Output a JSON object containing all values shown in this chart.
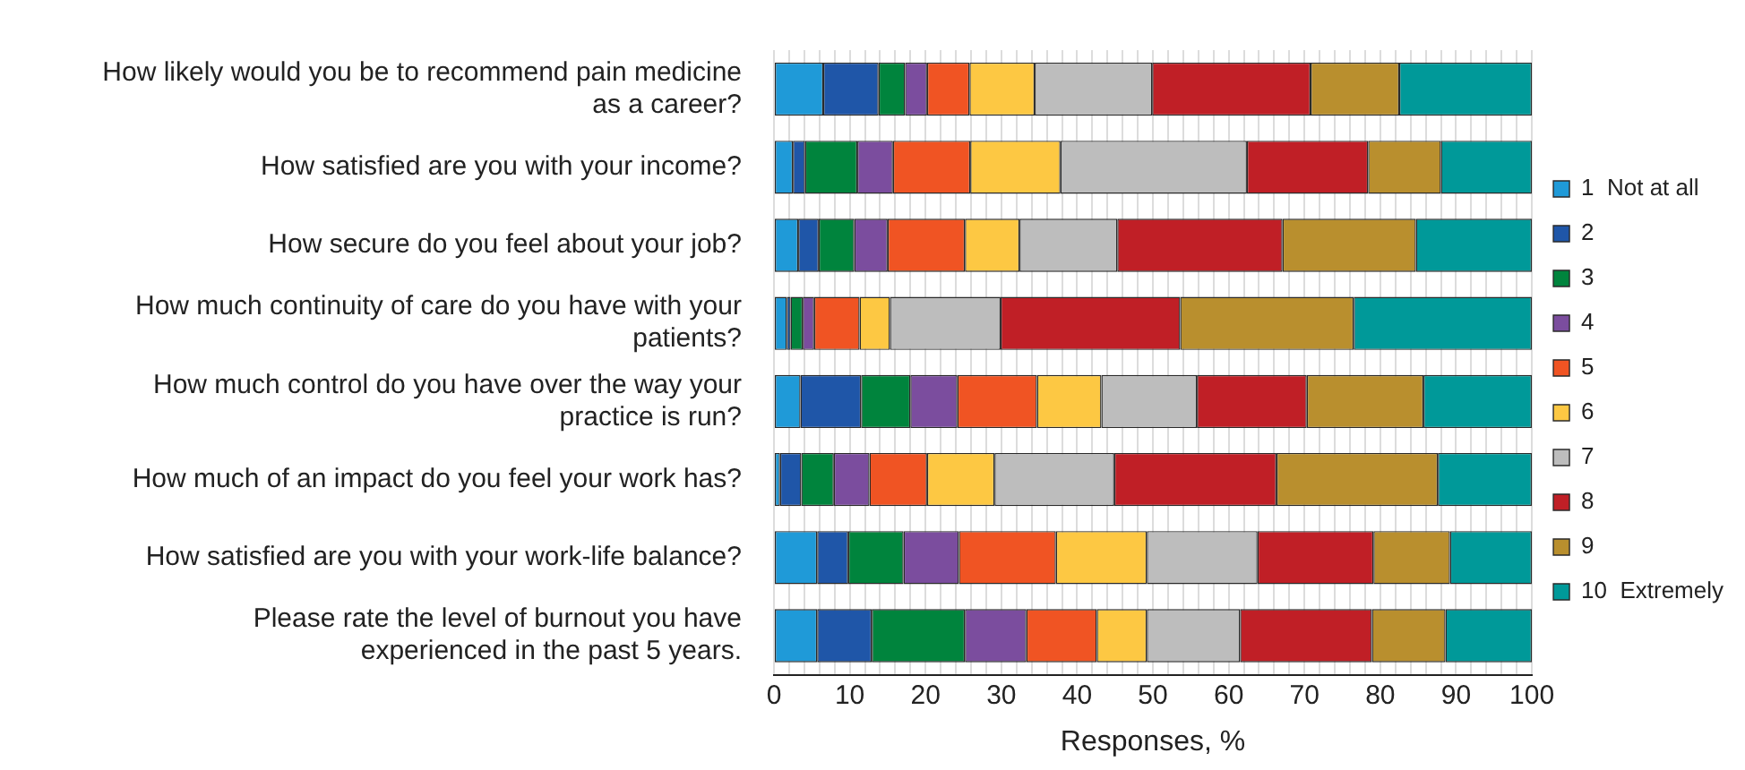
{
  "chart_data": {
    "type": "bar",
    "orientation": "horizontal",
    "stacked": true,
    "xlabel": "Responses, %",
    "categories": [
      "How likely would you be to recommend pain medicine as a career?",
      "How satisfied are you with your income?",
      "How secure do you feel about your job?",
      "How much continuity of care do you have with your patients?",
      "How much control do you have over the way your practice is run?",
      "How much of an impact do you feel your work has?",
      "How satisfied are you with your work-life balance?",
      "Please rate the level of burnout you have experienced in the past 5 years."
    ],
    "series": [
      {
        "name": "1  Not at all",
        "color": "#1f9ad8",
        "values": [
          6.5,
          2.5,
          3.2,
          1.7,
          3.5,
          0.8,
          5.7,
          5.7
        ]
      },
      {
        "name": "2",
        "color": "#1f56a8",
        "values": [
          7.3,
          1.6,
          2.7,
          0.5,
          8.0,
          2.8,
          4.1,
          7.2
        ]
      },
      {
        "name": "3",
        "color": "#00843d",
        "values": [
          3.5,
          6.9,
          4.7,
          1.6,
          6.5,
          4.3,
          7.3,
          12.3
        ]
      },
      {
        "name": "4",
        "color": "#7b4d9e",
        "values": [
          2.9,
          4.7,
          4.4,
          1.5,
          6.2,
          4.7,
          7.3,
          8.1
        ]
      },
      {
        "name": "5",
        "color": "#f05423",
        "values": [
          5.6,
          10.2,
          10.2,
          6.0,
          10.5,
          7.6,
          12.8,
          9.3
        ]
      },
      {
        "name": "6",
        "color": "#fdc843",
        "values": [
          8.6,
          11.9,
          7.2,
          4.0,
          8.5,
          8.9,
          12.0,
          6.6
        ]
      },
      {
        "name": "7",
        "color": "#bdbdbd",
        "values": [
          15.5,
          24.6,
          12.9,
          14.6,
          12.6,
          15.8,
          14.6,
          12.3
        ]
      },
      {
        "name": "8",
        "color": "#c01f26",
        "values": [
          20.9,
          16.0,
          21.8,
          23.7,
          14.5,
          21.4,
          15.3,
          17.4
        ]
      },
      {
        "name": "9",
        "color": "#b98f2e",
        "values": [
          11.7,
          9.6,
          17.6,
          22.9,
          15.4,
          21.3,
          10.1,
          9.7
        ]
      },
      {
        "name": "10  Extremely",
        "color": "#009999",
        "values": [
          17.5,
          12.0,
          15.3,
          23.5,
          14.3,
          12.4,
          10.8,
          11.4
        ]
      }
    ],
    "xlim": [
      0,
      100
    ],
    "xticks": [
      0,
      {
        "value": 2,
        "label": null
      },
      {
        "value": 4,
        "label": null
      },
      {
        "value": 6,
        "label": null
      },
      {
        "value": 8,
        "label": null
      },
      10,
      {
        "value": 12,
        "label": null
      },
      {
        "value": 14,
        "label": null
      },
      {
        "value": 16,
        "label": null
      },
      {
        "value": 18,
        "label": null
      },
      20,
      {
        "value": 22,
        "label": null
      },
      {
        "value": 24,
        "label": null
      },
      {
        "value": 26,
        "label": null
      },
      {
        "value": 28,
        "label": null
      },
      30,
      {
        "value": 32,
        "label": null
      },
      {
        "value": 34,
        "label": null
      },
      {
        "value": 36,
        "label": null
      },
      {
        "value": 38,
        "label": null
      },
      40,
      {
        "value": 42,
        "label": null
      },
      {
        "value": 44,
        "label": null
      },
      {
        "value": 46,
        "label": null
      },
      {
        "value": 48,
        "label": null
      },
      50,
      {
        "value": 52,
        "label": null
      },
      {
        "value": 54,
        "label": null
      },
      {
        "value": 56,
        "label": null
      },
      {
        "value": 58,
        "label": null
      },
      60,
      {
        "value": 62,
        "label": null
      },
      {
        "value": 64,
        "label": null
      },
      {
        "value": 66,
        "label": null
      },
      {
        "value": 68,
        "label": null
      },
      70,
      {
        "value": 72,
        "label": null
      },
      {
        "value": 74,
        "label": null
      },
      {
        "value": 76,
        "label": null
      },
      {
        "value": 78,
        "label": null
      },
      80,
      {
        "value": 82,
        "label": null
      },
      {
        "value": 84,
        "label": null
      },
      {
        "value": 86,
        "label": null
      },
      {
        "value": 88,
        "label": null
      },
      90,
      {
        "value": 92,
        "label": null
      },
      {
        "value": 94,
        "label": null
      },
      {
        "value": 96,
        "label": null
      },
      {
        "value": 98,
        "label": null
      },
      100
    ],
    "grid": "x",
    "legend": "right"
  }
}
